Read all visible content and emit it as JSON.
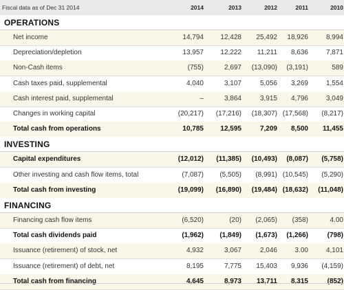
{
  "header": {
    "label": "Fiscal data as of Dec 31 2014",
    "years": [
      "2014",
      "2013",
      "2012",
      "2011",
      "2010"
    ]
  },
  "sections": [
    {
      "title": "OPERATIONS",
      "rows": [
        {
          "label": "Net income",
          "values": [
            "14,794",
            "12,428",
            "25,492",
            "18,926",
            "8,994"
          ],
          "total": false
        },
        {
          "label": "Depreciation/depletion",
          "values": [
            "13,957",
            "12,222",
            "11,211",
            "8,636",
            "7,871"
          ],
          "total": false
        },
        {
          "label": "Non-Cash items",
          "values": [
            "(755)",
            "2,697",
            "(13,090)",
            "(3,191)",
            "589"
          ],
          "total": false
        },
        {
          "label": "Cash taxes paid, supplemental",
          "values": [
            "4,040",
            "3,107",
            "5,056",
            "3,269",
            "1,554"
          ],
          "total": false
        },
        {
          "label": "Cash interest paid, supplemental",
          "values": [
            "–",
            "3,864",
            "3,915",
            "4,796",
            "3,049"
          ],
          "total": false
        },
        {
          "label": "Changes in working capital",
          "values": [
            "(20,217)",
            "(17,216)",
            "(18,307)",
            "(17,568)",
            "(8,217)"
          ],
          "total": false
        },
        {
          "label": "Total cash from operations",
          "values": [
            "10,785",
            "12,595",
            "7,209",
            "8,500",
            "11,455"
          ],
          "total": true
        }
      ]
    },
    {
      "title": "INVESTING",
      "rows": [
        {
          "label": "Capital expenditures",
          "values": [
            "(12,012)",
            "(11,385)",
            "(10,493)",
            "(8,087)",
            "(5,758)"
          ],
          "total": true
        },
        {
          "label": "Other investing and cash flow items, total",
          "values": [
            "(7,087)",
            "(5,505)",
            "(8,991)",
            "(10,545)",
            "(5,290)"
          ],
          "total": false
        },
        {
          "label": "Total cash from investing",
          "values": [
            "(19,099)",
            "(16,890)",
            "(19,484)",
            "(18,632)",
            "(11,048)"
          ],
          "total": true
        }
      ]
    },
    {
      "title": "FINANCING",
      "rows": [
        {
          "label": "Financing cash flow items",
          "values": [
            "(6,520)",
            "(20)",
            "(2,065)",
            "(358)",
            "4.00"
          ],
          "total": false
        },
        {
          "label": "Total cash dividends paid",
          "values": [
            "(1,962)",
            "(1,849)",
            "(1,673)",
            "(1,266)",
            "(798)"
          ],
          "total": true
        },
        {
          "label": "Issuance (retirement) of stock, net",
          "values": [
            "4,932",
            "3,067",
            "2,046",
            "3.00",
            "4,101"
          ],
          "total": false
        },
        {
          "label": "Issuance (retirement) of debt, net",
          "values": [
            "8,195",
            "7,775",
            "15,403",
            "9,936",
            "(4,159)"
          ],
          "total": false
        },
        {
          "label": "Total cash from financing",
          "values": [
            "4,645",
            "8,973",
            "13,711",
            "8,315",
            "(852)"
          ],
          "total": true
        }
      ]
    }
  ]
}
